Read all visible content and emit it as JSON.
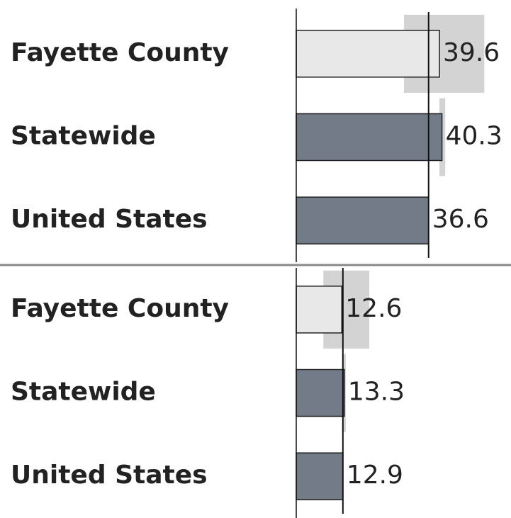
{
  "chart_data": [
    {
      "type": "bar",
      "orientation": "horizontal",
      "categories": [
        "Fayette County",
        "Statewide",
        "United States"
      ],
      "values": [
        39.6,
        40.3,
        36.6
      ],
      "ci_low": [
        29.8,
        39.6,
        null
      ],
      "ci_high": [
        52.0,
        41.2,
        null
      ],
      "colors": [
        "#e8e8e8",
        "#737b89",
        "#737b89"
      ],
      "band_color": "#d3d3d3",
      "xlim": [
        0,
        59
      ]
    },
    {
      "type": "bar",
      "orientation": "horizontal",
      "categories": [
        "Fayette County",
        "Statewide",
        "United States"
      ],
      "values": [
        12.6,
        13.3,
        12.9
      ],
      "ci_low": [
        7.5,
        12.7,
        null
      ],
      "ci_high": [
        20.2,
        13.7,
        null
      ],
      "colors": [
        "#e8e8e8",
        "#737b89",
        "#737b89"
      ],
      "band_color": "#d3d3d3",
      "xlim": [
        0,
        59
      ]
    }
  ]
}
